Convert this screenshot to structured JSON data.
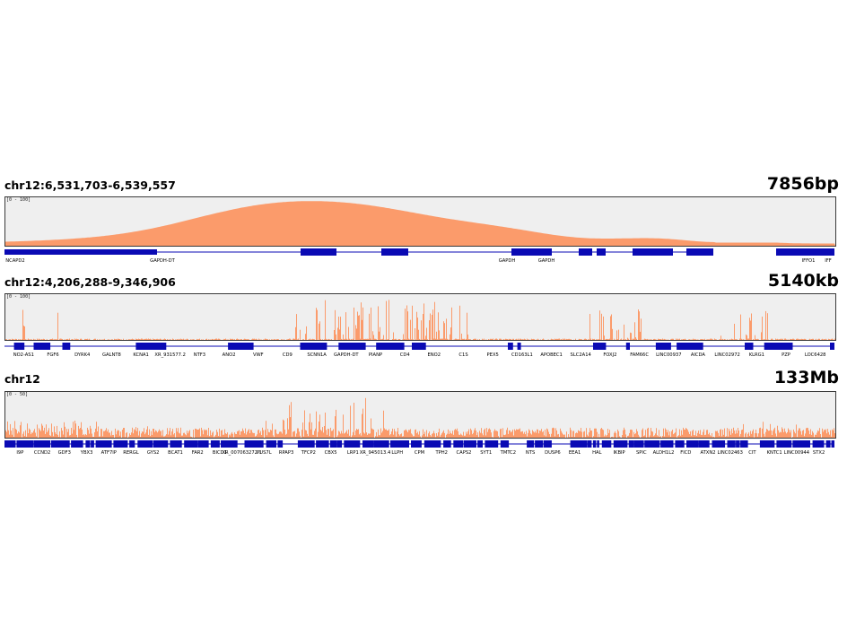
{
  "palette": {
    "coverage": "#fb9b6b",
    "coverage_dark": "#f27a45",
    "gene": "#0a0ab4",
    "panel_bg": "#efefef",
    "border": "#3a3a3a"
  },
  "panels": [
    {
      "coordinates": "chr12:6,531,703-6,539,557",
      "span": "7856bp",
      "scale": "[0 - 100]",
      "track_type": "smooth",
      "genes": [
        "NCAPD2",
        "GAPDH-DT",
        "GAPDH",
        "GAPDH",
        "IFFO1",
        "IFF"
      ]
    },
    {
      "coordinates": "chr12:4,206,288-9,346,906",
      "span": "5140kb",
      "scale": "[0 - 100]",
      "track_type": "spiky",
      "genes": [
        "NO2-AS1",
        "FGF6",
        "DYRK4",
        "GALNT8",
        "KCNA1",
        "XR_931577.2",
        "NTF3",
        "ANO2",
        "VWF",
        "CD9",
        "SCNN1A",
        "GAPDH-DT",
        "PIANP",
        "CD4",
        "ENO2",
        "C1S",
        "PEX5",
        "CD163L1",
        "APOBEC1",
        "SLC2A14",
        "FOXJ2",
        "FAM66C",
        "LINC00937",
        "AICDA",
        "LINC02972",
        "KLRG1",
        "PZP",
        "LOC6428"
      ]
    },
    {
      "coordinates": "chr12",
      "span": "133Mb",
      "scale": "[0 - 50]",
      "track_type": "chromosome",
      "genes": [
        "I9P",
        "CCND2",
        "GDF3",
        "YBX3",
        "ATF7IP",
        "RERGL",
        "GYS2",
        "BCAT1",
        "FAR2",
        "BICD1",
        "XR_007063272.1",
        "PUS7L",
        "RPAP3",
        "TFCP2",
        "CBX5",
        "LRP1",
        "XR_945013.4",
        "LLPH",
        "CPM",
        "TPH2",
        "CAPS2",
        "SYT1",
        "TMTC2",
        "NTS",
        "DUSP6",
        "EEA1",
        "HAL",
        "IKBIP",
        "SPIC",
        "ALDH1L2",
        "FICD",
        "ATXN2",
        "LINC02463",
        "CIT",
        "KNTC1",
        "LINC00944",
        "STX2"
      ]
    }
  ]
}
